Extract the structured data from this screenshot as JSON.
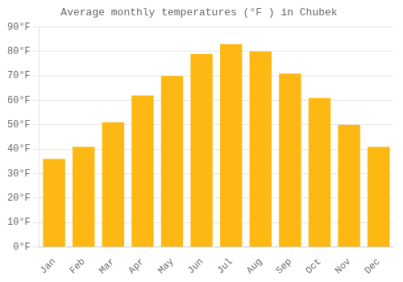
{
  "chart_data": {
    "type": "bar",
    "title": "Average monthly temperatures (°F ) in Chubek",
    "categories": [
      "Jan",
      "Feb",
      "Mar",
      "Apr",
      "May",
      "Jun",
      "Jul",
      "Aug",
      "Sep",
      "Oct",
      "Nov",
      "Dec"
    ],
    "values": [
      36,
      41,
      51,
      62,
      70,
      79,
      83,
      80,
      71,
      61,
      50,
      41
    ],
    "color": "#FDB813",
    "ylim": [
      0,
      90
    ],
    "yticks": [
      {
        "value": 0,
        "label": "0°F"
      },
      {
        "value": 10,
        "label": "10°F"
      },
      {
        "value": 20,
        "label": "20°F"
      },
      {
        "value": 30,
        "label": "30°F"
      },
      {
        "value": 40,
        "label": "40°F"
      },
      {
        "value": 50,
        "label": "50°F"
      },
      {
        "value": 60,
        "label": "60°F"
      },
      {
        "value": 70,
        "label": "70°F"
      },
      {
        "value": 80,
        "label": "80°F"
      },
      {
        "value": 90,
        "label": "90°F"
      }
    ],
    "grid": true
  }
}
